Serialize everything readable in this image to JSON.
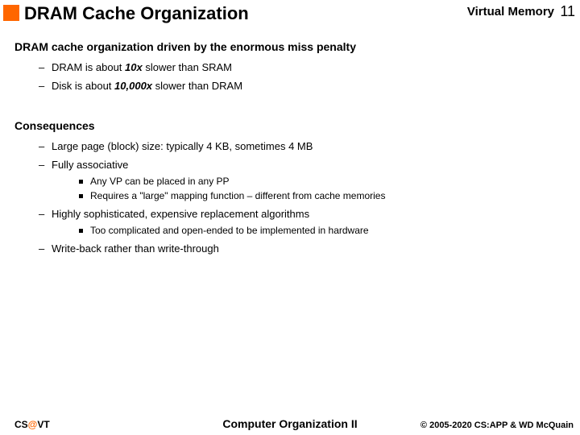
{
  "header": {
    "accent_color": "#ff6600",
    "title": "DRAM Cache Organization",
    "topic": "Virtual Memory",
    "page": "11"
  },
  "sections": {
    "s1": {
      "heading": "DRAM cache organization driven by the enormous miss penalty",
      "items": {
        "i0_pre": "DRAM is about ",
        "i0_em": "10x",
        "i0_post": " slower than SRAM",
        "i1_pre": "Disk is about ",
        "i1_em": "10,000x",
        "i1_post": " slower than DRAM"
      }
    },
    "s2": {
      "heading": "Consequences",
      "items": {
        "i0": "Large page (block) size: typically 4 KB, sometimes 4 MB",
        "i1": "Fully associative",
        "i1_sub": {
          "a": "Any VP can be placed in any PP",
          "b": "Requires a \"large\" mapping function – different from cache memories"
        },
        "i2": "Highly sophisticated, expensive replacement algorithms",
        "i2_sub": {
          "a": "Too complicated and open-ended to be implemented in hardware"
        },
        "i3": "Write-back rather than write-through"
      }
    }
  },
  "footer": {
    "left_pre": "CS",
    "left_at": "@",
    "left_post": "VT",
    "center": "Computer Organization II",
    "right": "© 2005-2020 CS:APP & WD McQuain"
  }
}
